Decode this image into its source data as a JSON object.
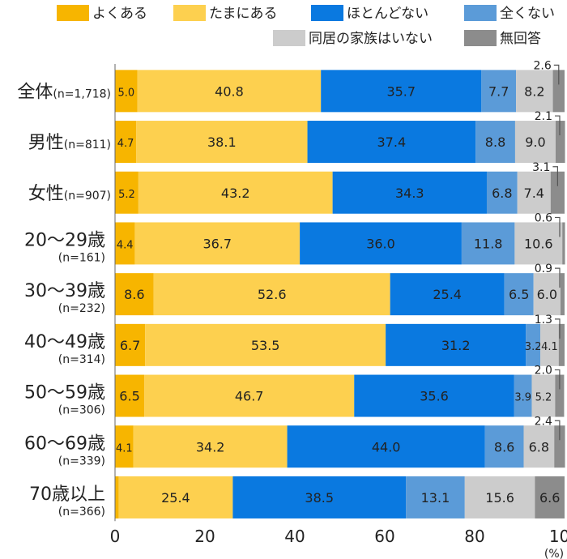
{
  "chart_data": {
    "type": "bar",
    "orientation": "horizontal",
    "stacked": true,
    "categories": [
      {
        "name": "全体",
        "n": "(n=1,718)"
      },
      {
        "name": "男性",
        "n": "(n=811)"
      },
      {
        "name": "女性",
        "n": "(n=907)"
      },
      {
        "name": "20～29歳",
        "n": "(n=161)"
      },
      {
        "name": "30～39歳",
        "n": "(n=232)"
      },
      {
        "name": "40～49歳",
        "n": "(n=314)"
      },
      {
        "name": "50～59歳",
        "n": "(n=306)"
      },
      {
        "name": "60～69歳",
        "n": "(n=339)"
      },
      {
        "name": "70歳以上",
        "n": "(n=366)"
      }
    ],
    "series": [
      {
        "name": "よくある",
        "color": "#f7b500",
        "values": [
          5.0,
          4.7,
          5.2,
          4.4,
          8.6,
          6.7,
          6.5,
          4.1,
          0.8
        ]
      },
      {
        "name": "たまにある",
        "color": "#fdd04f",
        "values": [
          40.8,
          38.1,
          43.2,
          36.7,
          52.6,
          53.5,
          46.7,
          34.2,
          25.4
        ]
      },
      {
        "name": "ほとんどない",
        "color": "#0a79e0",
        "values": [
          35.7,
          37.4,
          34.3,
          36.0,
          25.4,
          31.2,
          35.6,
          44.0,
          38.5
        ]
      },
      {
        "name": "全くない",
        "color": "#5b9bd8",
        "values": [
          7.7,
          8.8,
          6.8,
          11.8,
          6.5,
          3.2,
          3.9,
          8.6,
          13.1
        ]
      },
      {
        "name": "同居の家族はいない",
        "color": "#cccccc",
        "values": [
          8.2,
          9.0,
          7.4,
          10.6,
          6.0,
          4.1,
          5.2,
          6.8,
          15.6
        ]
      },
      {
        "name": "無回答",
        "color": "#8c8c8c",
        "values": [
          2.6,
          2.1,
          3.1,
          0.6,
          0.9,
          1.3,
          2.0,
          2.4,
          6.6
        ]
      }
    ],
    "xlim": [
      0,
      100
    ],
    "xticks": [
      "0",
      "20",
      "40",
      "60",
      "80",
      "100"
    ],
    "xunit": "(%)",
    "legend_position": "top-right",
    "grid": false
  }
}
